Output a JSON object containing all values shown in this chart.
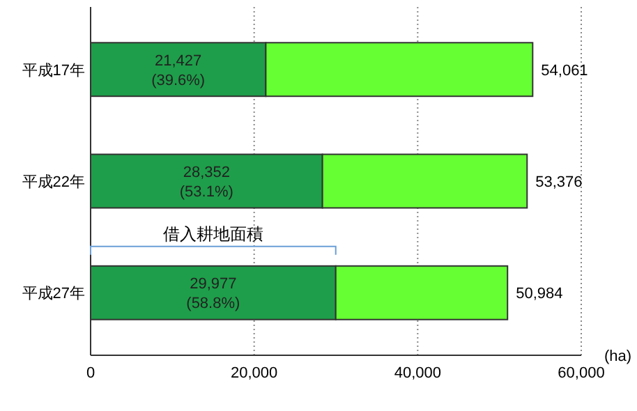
{
  "chart_data": {
    "type": "bar",
    "orientation": "horizontal",
    "stacked": true,
    "categories": [
      "平成17年",
      "平成22年",
      "平成27年"
    ],
    "series": [
      {
        "color": "#1e9e4a",
        "values": [
          21427,
          28352,
          29977
        ],
        "value_labels": [
          "21,427\n(39.6%)",
          "28,352\n(53.1%)",
          "29,977\n(58.8%)"
        ]
      },
      {
        "color": "#66ff33",
        "values": [
          32634,
          25024,
          21007
        ]
      }
    ],
    "totals": [
      "54,061",
      "53,376",
      "50,984"
    ],
    "xlim": [
      0,
      60000
    ],
    "xticks": [
      {
        "value": 0,
        "label": "0"
      },
      {
        "value": 20000,
        "label": "20,000"
      },
      {
        "value": 40000,
        "label": "40,000"
      },
      {
        "value": 60000,
        "label": "60,000"
      }
    ],
    "xlabel": "(ha)",
    "grid": "x",
    "annotations": [
      "借入耕地面積"
    ]
  }
}
